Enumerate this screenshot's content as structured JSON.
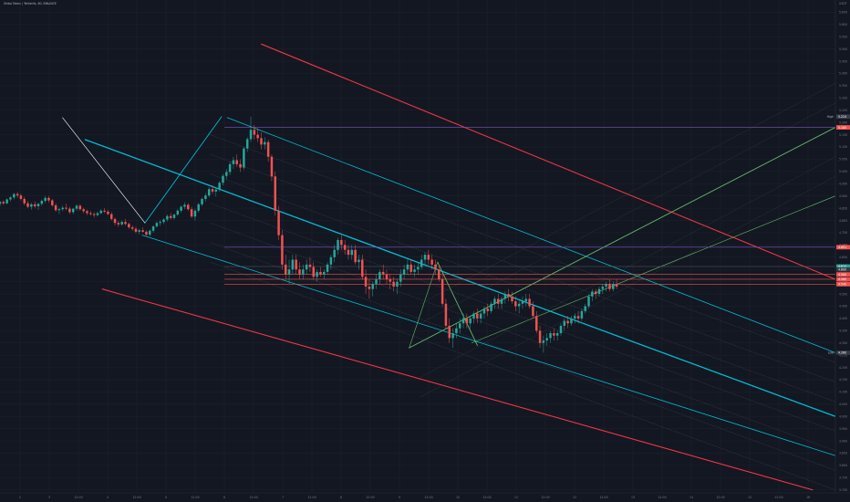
{
  "symbol_legend": "Shiba Token / Tetherlls, 60, BINANCE",
  "chart_data": {
    "type": "candlestick",
    "x_ticks": [
      "2",
      "3",
      "12:00",
      "4",
      "12:00",
      "5",
      "12:00",
      "6",
      "12:00",
      "7",
      "12:00",
      "8",
      "12:00",
      "9",
      "12:00",
      "10",
      "12:00",
      "11",
      "12:00",
      "12",
      "12:00",
      "13",
      "12:00",
      "14",
      "12:00",
      "15",
      "12:00",
      "16"
    ],
    "y_ticks": [
      "5.650",
      "5.600",
      "5.550",
      "5.500",
      "5.450",
      "5.400",
      "5.350",
      "5.300",
      "5.250",
      "5.200",
      "5.150",
      "5.100",
      "5.050",
      "5.000",
      "4.950",
      "4.900",
      "4.850",
      "4.800",
      "4.750",
      "4.700",
      "4.650",
      "4.600",
      "4.550",
      "4.500",
      "4.450",
      "4.400",
      "4.350",
      "4.300",
      "4.250",
      "4.200",
      "4.150",
      "4.100",
      "4.050",
      "4.000",
      "3.950",
      "3.900",
      "3.850",
      "3.800",
      "3.750",
      "3.700"
    ],
    "y_range": [
      3.688,
      5.7
    ],
    "top_label": "USDT",
    "price_labels": [
      {
        "text": "5.224",
        "value": 5.224,
        "color": "#3a3e4a"
      },
      {
        "text": "5.180",
        "value": 5.18,
        "color": "#ef5350"
      },
      {
        "text": "4.691",
        "value": 4.691,
        "color": "#ef5350"
      },
      {
        "text": "4.612",
        "value": 4.612,
        "color": "#26a69a"
      },
      {
        "text": "4.600",
        "value": 4.6,
        "color": "#363a45"
      },
      {
        "text": "4.580",
        "value": 4.58,
        "color": "#ef5350"
      },
      {
        "text": "4.560",
        "value": 4.56,
        "color": "#ef5350"
      },
      {
        "text": "4.540",
        "value": 4.54,
        "color": "#ef5350"
      },
      {
        "text": "4.260",
        "value": 4.26,
        "color": "#363a45"
      }
    ],
    "axis_notes": [
      {
        "text": "High",
        "value": 5.224
      },
      {
        "text": "Low",
        "value": 4.26
      }
    ],
    "hlines": [
      {
        "value": 5.18,
        "color": "#7e57c2"
      },
      {
        "value": 4.691,
        "color": "#7e57c2"
      },
      {
        "value": 4.612,
        "color": "#5d606b"
      },
      {
        "value": 4.58,
        "color": "#ef5350"
      },
      {
        "value": 4.56,
        "color": "#ef5350"
      },
      {
        "value": 4.54,
        "color": "#ef5350"
      }
    ],
    "candles": [
      [
        4.868,
        4.88,
        4.858,
        4.876
      ],
      [
        4.876,
        4.882,
        4.864,
        4.87
      ],
      [
        4.87,
        4.89,
        4.866,
        4.886
      ],
      [
        4.886,
        4.9,
        4.878,
        4.894
      ],
      [
        4.894,
        4.912,
        4.886,
        4.908
      ],
      [
        4.908,
        4.916,
        4.892,
        4.902
      ],
      [
        4.902,
        4.91,
        4.882,
        4.888
      ],
      [
        4.888,
        4.896,
        4.862,
        4.87
      ],
      [
        4.87,
        4.88,
        4.85,
        4.856
      ],
      [
        4.856,
        4.872,
        4.844,
        4.866
      ],
      [
        4.866,
        4.878,
        4.85,
        4.858
      ],
      [
        4.858,
        4.872,
        4.844,
        4.868
      ],
      [
        4.868,
        4.886,
        4.86,
        4.88
      ],
      [
        4.88,
        4.9,
        4.872,
        4.892
      ],
      [
        4.892,
        4.9,
        4.874,
        4.882
      ],
      [
        4.882,
        4.888,
        4.856,
        4.862
      ],
      [
        4.862,
        4.87,
        4.836,
        4.842
      ],
      [
        4.842,
        4.852,
        4.826,
        4.846
      ],
      [
        4.846,
        4.86,
        4.838,
        4.852
      ],
      [
        4.852,
        4.868,
        4.842,
        4.848
      ],
      [
        4.848,
        4.856,
        4.826,
        4.834
      ],
      [
        4.834,
        4.852,
        4.826,
        4.848
      ],
      [
        4.848,
        4.866,
        4.84,
        4.86
      ],
      [
        4.86,
        4.866,
        4.84,
        4.846
      ],
      [
        4.846,
        4.852,
        4.83,
        4.838
      ],
      [
        4.838,
        4.844,
        4.822,
        4.83
      ],
      [
        4.83,
        4.838,
        4.82,
        4.826
      ],
      [
        4.826,
        4.834,
        4.812,
        4.822
      ],
      [
        4.822,
        4.836,
        4.816,
        4.83
      ],
      [
        4.83,
        4.846,
        4.826,
        4.84
      ],
      [
        4.84,
        4.85,
        4.83,
        4.836
      ],
      [
        4.836,
        4.842,
        4.822,
        4.826
      ],
      [
        4.826,
        4.834,
        4.8,
        4.806
      ],
      [
        4.806,
        4.812,
        4.78,
        4.79
      ],
      [
        4.79,
        4.798,
        4.774,
        4.784
      ],
      [
        4.784,
        4.8,
        4.778,
        4.794
      ],
      [
        4.794,
        4.806,
        4.78,
        4.786
      ],
      [
        4.786,
        4.792,
        4.766,
        4.772
      ],
      [
        4.772,
        4.78,
        4.758,
        4.766
      ],
      [
        4.766,
        4.774,
        4.748,
        4.754
      ],
      [
        4.754,
        4.766,
        4.744,
        4.76
      ],
      [
        4.76,
        4.772,
        4.75,
        4.754
      ],
      [
        4.754,
        4.76,
        4.736,
        4.742
      ],
      [
        4.742,
        4.764,
        4.736,
        4.758
      ],
      [
        4.758,
        4.78,
        4.75,
        4.776
      ],
      [
        4.776,
        4.796,
        4.77,
        4.79
      ],
      [
        4.79,
        4.802,
        4.778,
        4.794
      ],
      [
        4.794,
        4.81,
        4.786,
        4.804
      ],
      [
        4.804,
        4.824,
        4.796,
        4.818
      ],
      [
        4.818,
        4.83,
        4.804,
        4.81
      ],
      [
        4.81,
        4.828,
        4.804,
        4.824
      ],
      [
        4.824,
        4.846,
        4.818,
        4.84
      ],
      [
        4.84,
        4.862,
        4.832,
        4.856
      ],
      [
        4.856,
        4.874,
        4.846,
        4.864
      ],
      [
        4.864,
        4.87,
        4.84,
        4.846
      ],
      [
        4.846,
        4.856,
        4.81,
        4.816
      ],
      [
        4.816,
        4.848,
        4.8,
        4.84
      ],
      [
        4.84,
        4.872,
        4.832,
        4.866
      ],
      [
        4.866,
        4.894,
        4.858,
        4.888
      ],
      [
        4.888,
        4.912,
        4.878,
        4.902
      ],
      [
        4.902,
        4.936,
        4.894,
        4.928
      ],
      [
        4.928,
        4.944,
        4.908,
        4.918
      ],
      [
        4.918,
        4.932,
        4.898,
        4.926
      ],
      [
        4.926,
        4.96,
        4.918,
        4.954
      ],
      [
        4.954,
        4.99,
        4.942,
        4.982
      ],
      [
        4.982,
        5.01,
        4.968,
        4.998
      ],
      [
        4.998,
        5.04,
        4.986,
        5.03
      ],
      [
        5.03,
        5.06,
        5.01,
        5.046
      ],
      [
        5.046,
        5.07,
        5.018,
        5.03
      ],
      [
        5.03,
        5.05,
        4.998,
        5.016
      ],
      [
        5.016,
        5.1,
        5.006,
        5.094
      ],
      [
        5.094,
        5.14,
        5.08,
        5.132
      ],
      [
        5.132,
        5.224,
        5.12,
        5.17
      ],
      [
        5.17,
        5.19,
        5.13,
        5.15
      ],
      [
        5.15,
        5.176,
        5.12,
        5.136
      ],
      [
        5.136,
        5.16,
        5.09,
        5.11
      ],
      [
        5.11,
        5.14,
        5.09,
        5.12
      ],
      [
        5.12,
        5.13,
        5.04,
        5.06
      ],
      [
        5.06,
        5.07,
        4.96,
        4.98
      ],
      [
        4.98,
        5.0,
        4.82,
        4.84
      ],
      [
        4.84,
        4.86,
        4.72,
        4.74
      ],
      [
        4.74,
        4.76,
        4.6,
        4.62
      ],
      [
        4.62,
        4.66,
        4.56,
        4.58
      ],
      [
        4.58,
        4.64,
        4.54,
        4.6
      ],
      [
        4.6,
        4.66,
        4.58,
        4.64
      ],
      [
        4.64,
        4.66,
        4.58,
        4.6
      ],
      [
        4.6,
        4.63,
        4.56,
        4.58
      ],
      [
        4.58,
        4.62,
        4.56,
        4.6
      ],
      [
        4.6,
        4.64,
        4.58,
        4.62
      ],
      [
        4.62,
        4.65,
        4.59,
        4.61
      ],
      [
        4.61,
        4.63,
        4.56,
        4.57
      ],
      [
        4.57,
        4.6,
        4.55,
        4.59
      ],
      [
        4.59,
        4.61,
        4.57,
        4.58
      ],
      [
        4.58,
        4.6,
        4.56,
        4.59
      ],
      [
        4.59,
        4.63,
        4.58,
        4.62
      ],
      [
        4.62,
        4.66,
        4.6,
        4.65
      ],
      [
        4.65,
        4.7,
        4.63,
        4.68
      ],
      [
        4.68,
        4.73,
        4.66,
        4.72
      ],
      [
        4.72,
        4.74,
        4.68,
        4.7
      ],
      [
        4.7,
        4.72,
        4.66,
        4.68
      ],
      [
        4.68,
        4.7,
        4.64,
        4.66
      ],
      [
        4.66,
        4.7,
        4.64,
        4.68
      ],
      [
        4.68,
        4.7,
        4.62,
        4.63
      ],
      [
        4.63,
        4.66,
        4.6,
        4.64
      ],
      [
        4.64,
        4.66,
        4.56,
        4.57
      ],
      [
        4.57,
        4.6,
        4.5,
        4.53
      ],
      [
        4.53,
        4.56,
        4.48,
        4.52
      ],
      [
        4.52,
        4.55,
        4.49,
        4.54
      ],
      [
        4.54,
        4.58,
        4.52,
        4.56
      ],
      [
        4.56,
        4.6,
        4.54,
        4.59
      ],
      [
        4.59,
        4.62,
        4.56,
        4.58
      ],
      [
        4.58,
        4.6,
        4.54,
        4.56
      ],
      [
        4.56,
        4.58,
        4.52,
        4.55
      ],
      [
        4.55,
        4.57,
        4.51,
        4.53
      ],
      [
        4.53,
        4.56,
        4.5,
        4.55
      ],
      [
        4.55,
        4.6,
        4.53,
        4.58
      ],
      [
        4.58,
        4.62,
        4.56,
        4.6
      ],
      [
        4.6,
        4.64,
        4.58,
        4.62
      ],
      [
        4.62,
        4.64,
        4.58,
        4.59
      ],
      [
        4.59,
        4.62,
        4.57,
        4.6
      ],
      [
        4.6,
        4.63,
        4.58,
        4.61
      ],
      [
        4.61,
        4.66,
        4.6,
        4.64
      ],
      [
        4.64,
        4.67,
        4.62,
        4.66
      ],
      [
        4.66,
        4.68,
        4.62,
        4.64
      ],
      [
        4.64,
        4.66,
        4.6,
        4.62
      ],
      [
        4.62,
        4.64,
        4.58,
        4.6
      ],
      [
        4.6,
        4.62,
        4.55,
        4.56
      ],
      [
        4.56,
        4.58,
        4.45,
        4.46
      ],
      [
        4.46,
        4.48,
        4.36,
        4.37
      ],
      [
        4.37,
        4.4,
        4.3,
        4.32
      ],
      [
        4.32,
        4.36,
        4.28,
        4.34
      ],
      [
        4.34,
        4.38,
        4.32,
        4.36
      ],
      [
        4.36,
        4.4,
        4.34,
        4.38
      ],
      [
        4.38,
        4.42,
        4.36,
        4.4
      ],
      [
        4.4,
        4.42,
        4.36,
        4.38
      ],
      [
        4.38,
        4.41,
        4.36,
        4.4
      ],
      [
        4.4,
        4.43,
        4.38,
        4.42
      ],
      [
        4.42,
        4.44,
        4.38,
        4.4
      ],
      [
        4.4,
        4.43,
        4.38,
        4.42
      ],
      [
        4.42,
        4.45,
        4.4,
        4.44
      ],
      [
        4.44,
        4.46,
        4.41,
        4.43
      ],
      [
        4.43,
        4.47,
        4.42,
        4.46
      ],
      [
        4.46,
        4.49,
        4.44,
        4.48
      ],
      [
        4.48,
        4.5,
        4.44,
        4.46
      ],
      [
        4.46,
        4.49,
        4.44,
        4.48
      ],
      [
        4.48,
        4.51,
        4.46,
        4.5
      ],
      [
        4.5,
        4.52,
        4.47,
        4.49
      ],
      [
        4.49,
        4.51,
        4.46,
        4.47
      ],
      [
        4.47,
        4.49,
        4.43,
        4.45
      ],
      [
        4.45,
        4.48,
        4.42,
        4.46
      ],
      [
        4.46,
        4.49,
        4.44,
        4.47
      ],
      [
        4.47,
        4.5,
        4.45,
        4.48
      ],
      [
        4.48,
        4.5,
        4.44,
        4.45
      ],
      [
        4.45,
        4.47,
        4.4,
        4.41
      ],
      [
        4.41,
        4.43,
        4.34,
        4.35
      ],
      [
        4.35,
        4.37,
        4.28,
        4.3
      ],
      [
        4.3,
        4.33,
        4.26,
        4.31
      ],
      [
        4.31,
        4.34,
        4.29,
        4.32
      ],
      [
        4.32,
        4.35,
        4.3,
        4.34
      ],
      [
        4.34,
        4.36,
        4.31,
        4.33
      ],
      [
        4.33,
        4.35,
        4.31,
        4.34
      ],
      [
        4.34,
        4.38,
        4.33,
        4.37
      ],
      [
        4.37,
        4.4,
        4.35,
        4.39
      ],
      [
        4.39,
        4.41,
        4.36,
        4.38
      ],
      [
        4.38,
        4.41,
        4.37,
        4.4
      ],
      [
        4.4,
        4.42,
        4.38,
        4.41
      ],
      [
        4.41,
        4.43,
        4.38,
        4.4
      ],
      [
        4.4,
        4.44,
        4.39,
        4.43
      ],
      [
        4.43,
        4.46,
        4.42,
        4.45
      ],
      [
        4.45,
        4.5,
        4.44,
        4.49
      ],
      [
        4.49,
        4.52,
        4.47,
        4.51
      ],
      [
        4.51,
        4.52,
        4.48,
        4.5
      ],
      [
        4.5,
        4.53,
        4.49,
        4.52
      ],
      [
        4.52,
        4.54,
        4.5,
        4.53
      ],
      [
        4.53,
        4.55,
        4.51,
        4.54
      ],
      [
        4.54,
        4.56,
        4.51,
        4.52
      ],
      [
        4.52,
        4.55,
        4.51,
        4.54
      ],
      [
        4.54,
        4.56,
        4.52,
        4.53
      ]
    ],
    "candle_timeline": {
      "first": -0.5,
      "last": 10.35
    },
    "x_domain": [
      -0.5,
      14.2
    ],
    "drawings": [
      {
        "color": "#f23645",
        "width": 1.1,
        "points": [
          [
            4.1,
            5.52
          ],
          [
            14.2,
            4.56
          ]
        ]
      },
      {
        "color": "#f23645",
        "width": 1.1,
        "points": [
          [
            1.3,
            4.52
          ],
          [
            13.8,
            3.7
          ]
        ]
      },
      {
        "color": "#00bcd4",
        "width": 1.3,
        "points": [
          [
            1.0,
            5.13
          ],
          [
            14.2,
            4.0
          ]
        ]
      },
      {
        "color": "#00bcd4",
        "width": 0.8,
        "points": [
          [
            3.5,
            5.22
          ],
          [
            14.2,
            4.26
          ]
        ]
      },
      {
        "color": "#00bcd4",
        "width": 0.8,
        "points": [
          [
            2.0,
            4.74
          ],
          [
            14.2,
            3.84
          ]
        ]
      },
      {
        "color": "#00bcd4",
        "width": 0.9,
        "points": [
          [
            2.05,
            4.79
          ],
          [
            3.4,
            5.224
          ]
        ]
      },
      {
        "color": "#ffffff",
        "width": 0.6,
        "points": [
          [
            0.6,
            5.22
          ],
          [
            2.05,
            4.79
          ]
        ]
      },
      {
        "color": "#66bb6a",
        "width": 0.9,
        "points": [
          [
            6.7,
            4.28
          ],
          [
            14.2,
            5.18
          ]
        ]
      },
      {
        "color": "#66bb6a",
        "width": 0.6,
        "points": [
          [
            7.8,
            4.3
          ],
          [
            14.2,
            4.9
          ]
        ]
      },
      {
        "color": "#66bb6a",
        "width": 0.9,
        "points": [
          [
            7.2,
            4.63
          ],
          [
            7.9,
            4.29
          ]
        ]
      },
      {
        "color": "#66bb6a",
        "width": 0.6,
        "points": [
          [
            6.7,
            4.28
          ],
          [
            7.2,
            4.63
          ]
        ]
      }
    ]
  }
}
